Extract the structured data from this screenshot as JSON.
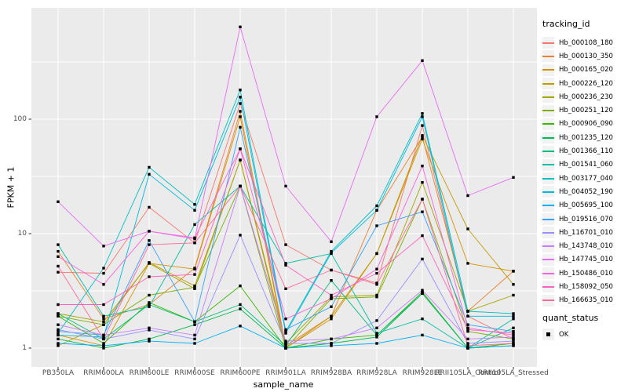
{
  "colors": {
    "panel_bg": "#EBEBEB",
    "grid": "#FFFFFF",
    "tick_mark": "#333333",
    "tick_text": "#4D4D4D",
    "title_text": "#000000",
    "legend_key_bg": "#F2F2F2",
    "point": "#000000"
  },
  "chart_data": {
    "type": "line",
    "title": "",
    "xlabel": "sample_name",
    "ylabel": "FPKM + 1",
    "y_scale": "log10",
    "ylim": [
      1,
      1000
    ],
    "yticks": [
      1,
      10,
      100
    ],
    "ytick_labels": [
      "1",
      "10",
      "100"
    ],
    "grid": true,
    "legend_position": "right",
    "legend_title": "tracking_id",
    "point_legend": {
      "title": "quant_status",
      "items": [
        {
          "label": "OK",
          "shape": "square",
          "color": "#000000"
        }
      ]
    },
    "categories": [
      "PB350LA",
      "RRIM600LA",
      "RRIM600LE",
      "RRIM600SE",
      "RRIM600PE",
      "RRIM901LA",
      "RRIM928BA",
      "RRIM928LA",
      "RRIM928LE",
      "RRII105LA_Control",
      "RRII105LA_Stressed"
    ],
    "series": [
      {
        "name": "Hb_000108_180",
        "color": "#F8766D",
        "values": [
          4.6,
          4.5,
          17,
          8.3,
          137,
          8,
          4.8,
          3.7,
          88,
          1.9,
          1.2
        ]
      },
      {
        "name": "Hb_000130_350",
        "color": "#EA8331",
        "values": [
          7,
          1.8,
          2.4,
          5,
          117,
          1.05,
          1.9,
          16,
          70,
          2.1,
          4.7
        ]
      },
      {
        "name": "Hb_000165_020",
        "color": "#D89000",
        "values": [
          1.3,
          1.05,
          5.5,
          4.9,
          105,
          1,
          1.8,
          6.7,
          67,
          5.5,
          4.7
        ]
      },
      {
        "name": "Hb_000226_120",
        "color": "#C09B00",
        "values": [
          1.05,
          1.6,
          5.6,
          3.5,
          44,
          1,
          1.9,
          6.7,
          72,
          11,
          3.6
        ]
      },
      {
        "name": "Hb_000236_230",
        "color": "#A3A500",
        "values": [
          2,
          1.7,
          5.5,
          3.3,
          44,
          1.1,
          2.8,
          2.9,
          28,
          2.1,
          2.9
        ]
      },
      {
        "name": "Hb_000251_120",
        "color": "#7CAE00",
        "values": [
          1.9,
          1.6,
          2.9,
          3.4,
          26,
          1,
          2.7,
          2.8,
          20,
          1.4,
          1.2
        ]
      },
      {
        "name": "Hb_000906_090",
        "color": "#39B600",
        "values": [
          1.9,
          1.1,
          2.5,
          1.7,
          3.5,
          1,
          1.2,
          1.3,
          3.1,
          1,
          1.1
        ]
      },
      {
        "name": "Hb_001235_120",
        "color": "#00BB4E",
        "values": [
          1.2,
          1,
          1.2,
          1.6,
          2.2,
          1,
          1.1,
          1.25,
          3,
          1,
          1.05
        ]
      },
      {
        "name": "Hb_001366_110",
        "color": "#00BF7D",
        "values": [
          2,
          1.2,
          2.4,
          1.7,
          2.4,
          1.05,
          3.9,
          1.3,
          3,
          1,
          1.5
        ]
      },
      {
        "name": "Hb_001541_060",
        "color": "#00C1A3",
        "values": [
          8,
          1.9,
          2.3,
          12,
          26,
          5.5,
          6.7,
          1.35,
          1.8,
          1,
          1.8
        ]
      },
      {
        "name": "Hb_003177_040",
        "color": "#00BFC4",
        "values": [
          1.35,
          5,
          38,
          18,
          180,
          1.4,
          7,
          17.5,
          112,
          2.1,
          2
        ]
      },
      {
        "name": "Hb_004052_190",
        "color": "#00BAE0",
        "values": [
          1.3,
          1.25,
          33,
          16,
          156,
          1.35,
          6.8,
          16,
          105,
          1.9,
          1.9
        ]
      },
      {
        "name": "Hb_005695_100",
        "color": "#00B0F6",
        "values": [
          1.1,
          1.05,
          1.15,
          1.1,
          1.56,
          1,
          1.05,
          1.1,
          1.3,
          1,
          1.05
        ]
      },
      {
        "name": "Hb_019516_070",
        "color": "#35A2FF",
        "values": [
          1.4,
          1.3,
          8.7,
          1.7,
          85,
          1.45,
          2.3,
          11.7,
          15.5,
          1.6,
          1.4
        ]
      },
      {
        "name": "Hb_116701_010",
        "color": "#9590FF",
        "values": [
          1.45,
          1.2,
          1.44,
          1.2,
          9.7,
          1.1,
          1.1,
          1.74,
          6,
          1.1,
          1.15
        ]
      },
      {
        "name": "Hb_143748_010",
        "color": "#C77CFF",
        "values": [
          1.6,
          1.3,
          1.5,
          1.3,
          26,
          1.15,
          1.2,
          1.5,
          3.2,
          1.2,
          1.25
        ]
      },
      {
        "name": "Hb_147745_010",
        "color": "#E76BF3",
        "values": [
          19,
          7.8,
          10.5,
          9,
          640,
          26,
          8.5,
          105,
          325,
          21.5,
          31
        ]
      },
      {
        "name": "Hb_150486_010",
        "color": "#FA62DB",
        "values": [
          6.3,
          3.6,
          10.5,
          9.2,
          55,
          1.8,
          2.7,
          4.9,
          39,
          1.5,
          1.3
        ]
      },
      {
        "name": "Hb_158092_050",
        "color": "#FF62BC",
        "values": [
          2.4,
          2.4,
          4.2,
          4.4,
          55,
          5.3,
          2.9,
          4.5,
          9.6,
          1.45,
          1.35
        ]
      },
      {
        "name": "Hb_166635_010",
        "color": "#FF6A98",
        "values": [
          5.2,
          1.2,
          8,
          8.3,
          26,
          3.3,
          4.8,
          3.6,
          20,
          1.05,
          1.1
        ]
      }
    ]
  }
}
